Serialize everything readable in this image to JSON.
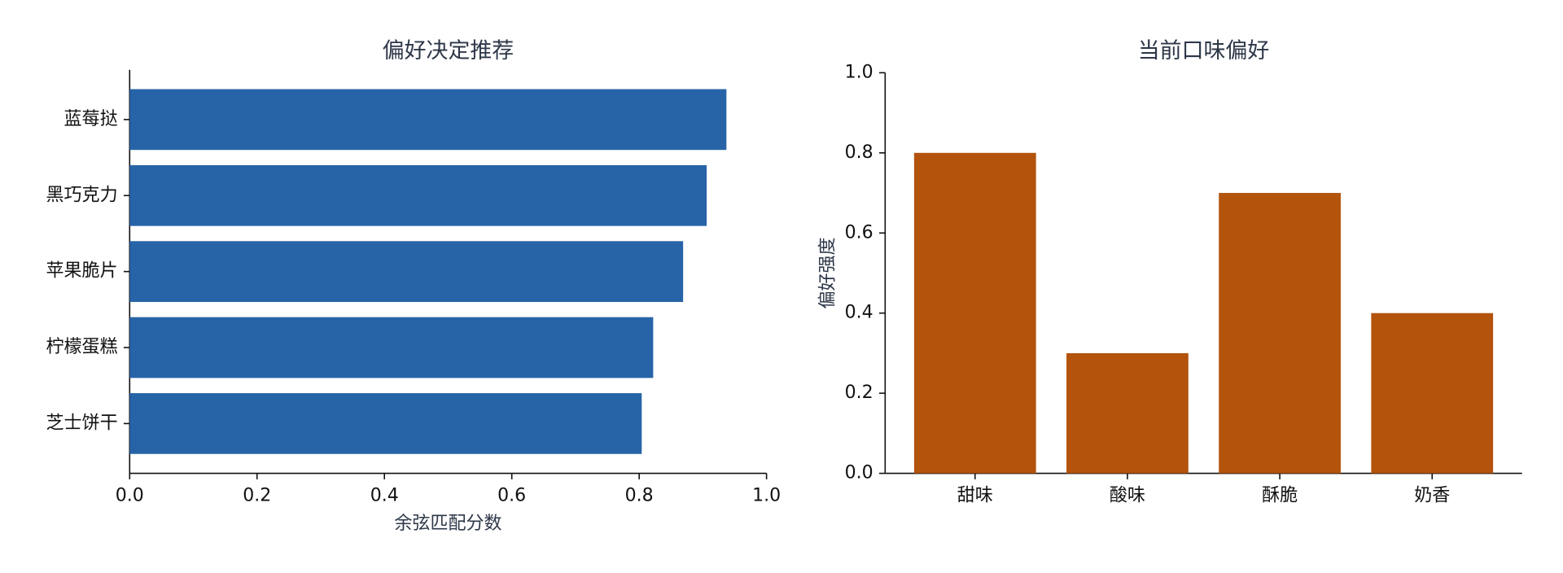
{
  "chart_data": [
    {
      "type": "bar",
      "orientation": "horizontal",
      "title": "偏好决定推荐",
      "xlabel": "余弦匹配分数",
      "categories": [
        "蓝莓挞",
        "黑巧克力",
        "苹果脆片",
        "柠檬蛋糕",
        "芝士饼干"
      ],
      "values": [
        0.937,
        0.906,
        0.869,
        0.822,
        0.804
      ],
      "color": "#2764a7",
      "xlim": [
        0,
        1
      ],
      "xticks": [
        {
          "value": 0,
          "label": "0.0"
        },
        {
          "value": 0.2,
          "label": "0.2"
        },
        {
          "value": 0.4,
          "label": "0.4"
        },
        {
          "value": 0.6,
          "label": "0.6"
        },
        {
          "value": 0.8,
          "label": "0.8"
        },
        {
          "value": 1,
          "label": "1.0"
        }
      ]
    },
    {
      "type": "bar",
      "orientation": "vertical",
      "title": "当前口味偏好",
      "ylabel": "偏好强度",
      "categories": [
        "甜味",
        "酸味",
        "酥脆",
        "奶香"
      ],
      "values": [
        0.8,
        0.3,
        0.7,
        0.4
      ],
      "color": "#b3530c",
      "ylim": [
        0,
        1
      ],
      "yticks": [
        {
          "value": 0,
          "label": "0.0"
        },
        {
          "value": 0.2,
          "label": "0.2"
        },
        {
          "value": 0.4,
          "label": "0.4"
        },
        {
          "value": 0.6,
          "label": "0.6"
        },
        {
          "value": 0.8,
          "label": "0.8"
        },
        {
          "value": 1,
          "label": "1.0"
        }
      ]
    }
  ]
}
